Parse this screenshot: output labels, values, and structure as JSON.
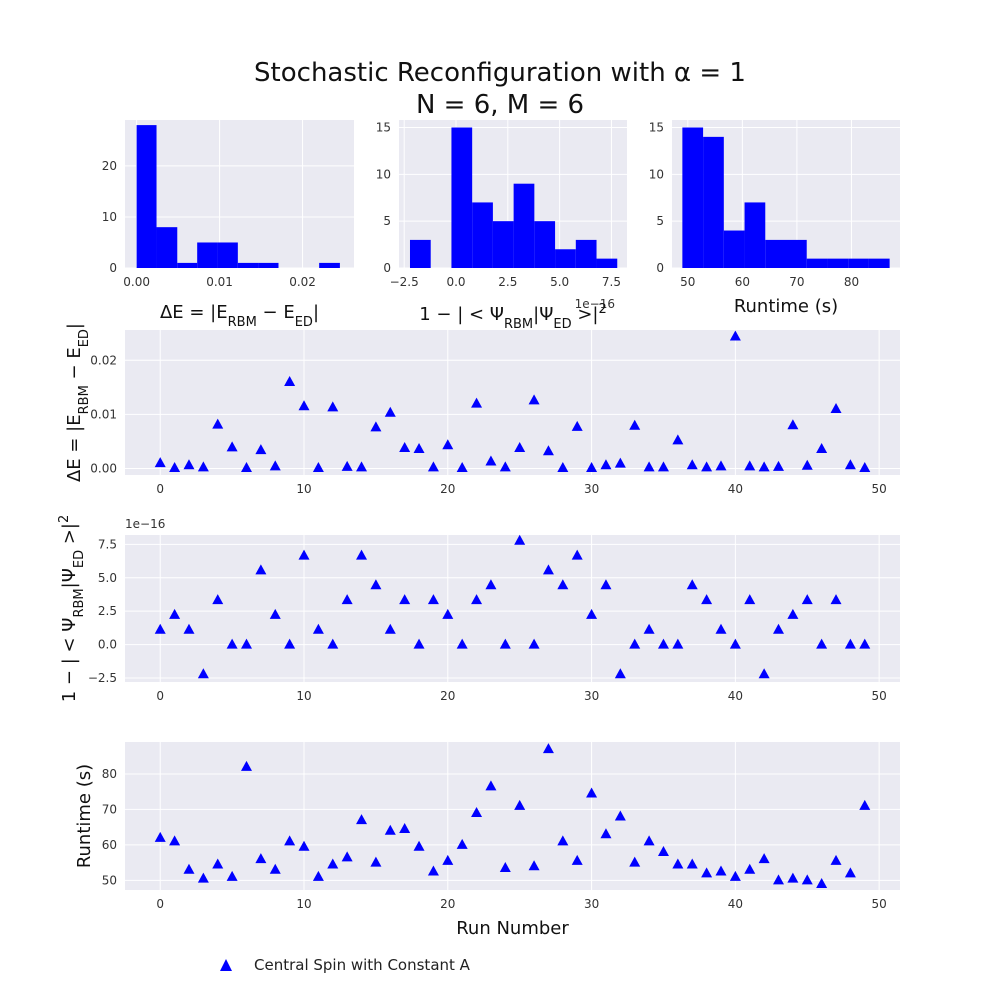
{
  "figure": {
    "title_line1": "Stochastic Reconfiguration with α = 1",
    "title_line2": "N = 6, M = 6",
    "legend_label": "Central Spin with Constant A",
    "colors": {
      "panel_bg": "#eaeaf2",
      "grid": "#ffffff",
      "mark": "#0000ff"
    }
  },
  "chart_data": [
    {
      "id": "hist_delta_e",
      "type": "bar",
      "xlabel": "ΔE = |E_RBM − E_ED|",
      "xlim": [
        -0.0014,
        0.0262
      ],
      "ylim": [
        0,
        29
      ],
      "xticks": [
        0.0,
        0.01,
        0.02
      ],
      "xtick_labels": [
        "0.00",
        "0.01",
        "0.02"
      ],
      "yticks": [
        0,
        10,
        20
      ],
      "ytick_labels": [
        "0",
        "10",
        "20"
      ],
      "bin_edges": [
        0.0,
        0.0024,
        0.0049,
        0.0073,
        0.0098,
        0.0122,
        0.0147,
        0.0171,
        0.0196,
        0.022,
        0.0245
      ],
      "counts": [
        28,
        8,
        1,
        5,
        5,
        1,
        1,
        0,
        0,
        1
      ]
    },
    {
      "id": "hist_infidelity",
      "type": "bar",
      "xlabel": "1 − | < Ψ_RBM|Ψ_ED >|²",
      "x_offset_label": "1e−16",
      "xlim": [
        -2.75,
        8.25
      ],
      "ylim": [
        0,
        15.8
      ],
      "xticks": [
        -2.5,
        0.0,
        2.5,
        5.0,
        7.5
      ],
      "xtick_labels": [
        "−2.5",
        "0.0",
        "2.5",
        "5.0",
        "7.5"
      ],
      "yticks": [
        0,
        5,
        10,
        15
      ],
      "ytick_labels": [
        "0",
        "5",
        "10",
        "15"
      ],
      "bin_edges": [
        -2.22,
        -1.22,
        -0.22,
        0.78,
        1.78,
        2.78,
        3.78,
        4.78,
        5.78,
        6.78,
        7.78
      ],
      "counts": [
        3,
        0,
        15,
        7,
        5,
        9,
        5,
        2,
        3,
        1
      ]
    },
    {
      "id": "hist_runtime",
      "type": "bar",
      "xlabel": "Runtime (s)",
      "xlim": [
        47.1,
        88.9
      ],
      "ylim": [
        0,
        15.8
      ],
      "xticks": [
        50,
        60,
        70,
        80
      ],
      "xtick_labels": [
        "50",
        "60",
        "70",
        "80"
      ],
      "yticks": [
        0,
        5,
        10,
        15
      ],
      "ytick_labels": [
        "0",
        "5",
        "10",
        "15"
      ],
      "bin_edges": [
        49.0,
        52.8,
        56.6,
        60.4,
        64.2,
        68.0,
        71.8,
        75.6,
        79.4,
        83.2,
        87.0
      ],
      "counts": [
        15,
        14,
        4,
        7,
        3,
        3,
        1,
        1,
        1,
        1
      ]
    },
    {
      "id": "scatter_delta_e",
      "type": "scatter",
      "ylabel": "ΔE = |E_RBM − E_ED|",
      "xlim": [
        -2.45,
        51.45
      ],
      "ylim": [
        -0.0012,
        0.0256
      ],
      "xticks": [
        0,
        10,
        20,
        30,
        40,
        50
      ],
      "xtick_labels": [
        "0",
        "10",
        "20",
        "30",
        "40",
        "50"
      ],
      "yticks": [
        0.0,
        0.01,
        0.02
      ],
      "ytick_labels": [
        "0.00",
        "0.01",
        "0.02"
      ],
      "x": [
        0,
        1,
        2,
        3,
        4,
        5,
        6,
        7,
        8,
        9,
        10,
        11,
        12,
        13,
        14,
        15,
        16,
        17,
        18,
        19,
        20,
        21,
        22,
        23,
        24,
        25,
        26,
        27,
        28,
        29,
        30,
        31,
        32,
        33,
        34,
        35,
        36,
        37,
        38,
        39,
        40,
        41,
        42,
        43,
        44,
        45,
        46,
        47,
        48,
        49
      ],
      "y": [
        0.001,
        0.0001,
        0.0006,
        0.0002,
        0.0081,
        0.0039,
        0.0001,
        0.0034,
        0.0004,
        0.016,
        0.0115,
        0.0001,
        0.0113,
        0.0003,
        0.0002,
        0.0076,
        0.0103,
        0.0038,
        0.0036,
        0.0002,
        0.0043,
        0.0001,
        0.012,
        0.0013,
        0.0002,
        0.0038,
        0.0126,
        0.0032,
        0.0001,
        0.0077,
        0.0001,
        0.0006,
        0.0009,
        0.0079,
        0.0002,
        0.0002,
        0.0052,
        0.0006,
        0.0002,
        0.0004,
        0.0244,
        0.0004,
        0.0002,
        0.0003,
        0.008,
        0.0005,
        0.0036,
        0.011,
        0.0006,
        0.0001
      ]
    },
    {
      "id": "scatter_infidelity",
      "type": "scatter",
      "ylabel": "1 − | < Ψ_RBM|Ψ_ED >|²",
      "y_offset_label": "1e−16",
      "xlim": [
        -2.45,
        51.45
      ],
      "ylim": [
        -2.8,
        8.2
      ],
      "xticks": [
        0,
        10,
        20,
        30,
        40,
        50
      ],
      "xtick_labels": [
        "0",
        "10",
        "20",
        "30",
        "40",
        "50"
      ],
      "yticks": [
        -2.5,
        0.0,
        2.5,
        5.0,
        7.5
      ],
      "ytick_labels": [
        "−2.5",
        "0.0",
        "2.5",
        "5.0",
        "7.5"
      ],
      "x": [
        0,
        1,
        2,
        3,
        4,
        5,
        6,
        7,
        8,
        9,
        10,
        11,
        12,
        13,
        14,
        15,
        16,
        17,
        18,
        19,
        20,
        21,
        22,
        23,
        24,
        25,
        26,
        27,
        28,
        29,
        30,
        31,
        32,
        33,
        34,
        35,
        36,
        37,
        38,
        39,
        40,
        41,
        42,
        43,
        44,
        45,
        46,
        47,
        48,
        49
      ],
      "y": [
        1.11,
        2.22,
        1.11,
        -2.22,
        3.33,
        0,
        0,
        5.55,
        2.22,
        0,
        6.66,
        1.11,
        0,
        3.33,
        6.66,
        4.44,
        1.11,
        3.33,
        0,
        3.33,
        2.22,
        0,
        3.33,
        4.44,
        0,
        7.77,
        0,
        5.55,
        4.44,
        6.66,
        2.22,
        4.44,
        -2.22,
        0,
        1.11,
        0,
        0,
        4.44,
        3.33,
        1.11,
        0,
        3.33,
        -2.22,
        1.11,
        2.22,
        3.33,
        0,
        3.33,
        0,
        0
      ]
    },
    {
      "id": "scatter_runtime",
      "type": "scatter",
      "ylabel": "Runtime (s)",
      "xlabel": "Run Number",
      "xlim": [
        -2.45,
        51.45
      ],
      "ylim": [
        47.3,
        89.0
      ],
      "xticks": [
        0,
        10,
        20,
        30,
        40,
        50
      ],
      "xtick_labels": [
        "0",
        "10",
        "20",
        "30",
        "40",
        "50"
      ],
      "yticks": [
        50,
        60,
        70,
        80
      ],
      "ytick_labels": [
        "50",
        "60",
        "70",
        "80"
      ],
      "x": [
        0,
        1,
        2,
        3,
        4,
        5,
        6,
        7,
        8,
        9,
        10,
        11,
        12,
        13,
        14,
        15,
        16,
        17,
        18,
        19,
        20,
        21,
        22,
        23,
        24,
        25,
        26,
        27,
        28,
        29,
        30,
        31,
        32,
        33,
        34,
        35,
        36,
        37,
        38,
        39,
        40,
        41,
        42,
        43,
        44,
        45,
        46,
        47,
        48,
        49
      ],
      "y": [
        62,
        61,
        53,
        50.5,
        54.5,
        51,
        82,
        56,
        53,
        61,
        59.5,
        51,
        54.5,
        56.5,
        67,
        55,
        64,
        64.5,
        59.5,
        52.5,
        55.5,
        60,
        69,
        76.5,
        53.5,
        71,
        54,
        87,
        61,
        55.5,
        74.5,
        63,
        68,
        55,
        61,
        58,
        54.5,
        54.5,
        52,
        52.5,
        51,
        53,
        56,
        50,
        50.5,
        50,
        49,
        55.5,
        52,
        71
      ]
    }
  ]
}
